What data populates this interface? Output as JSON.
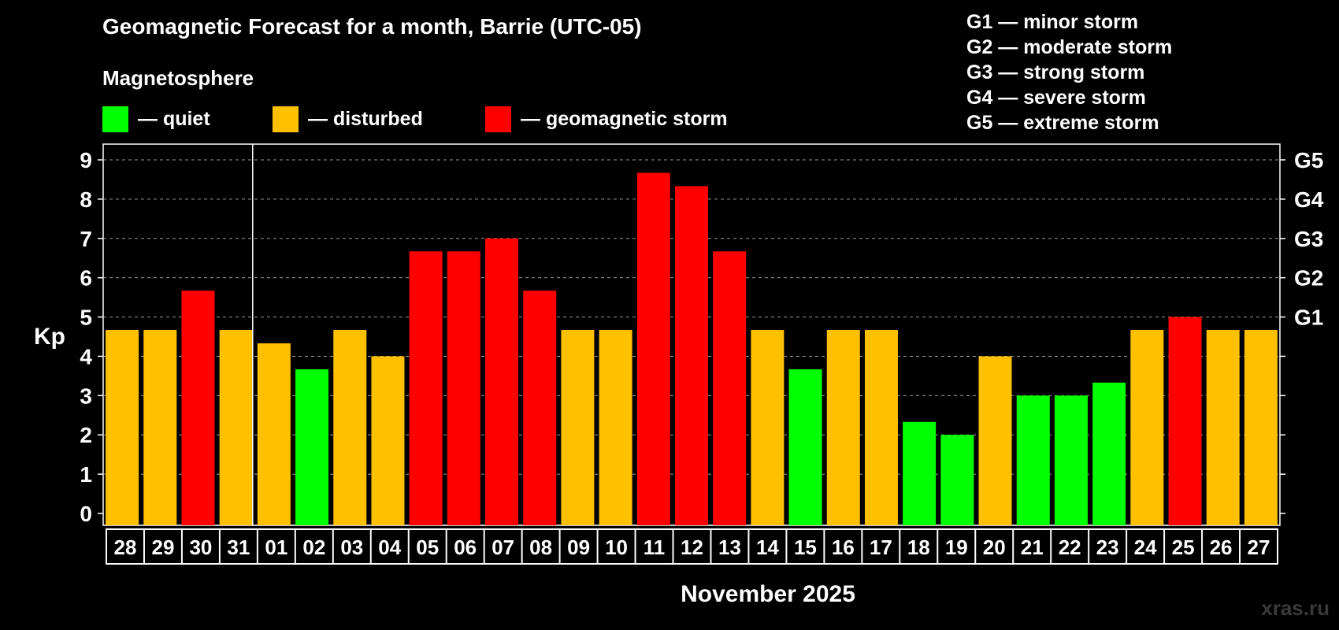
{
  "chart_data": {
    "type": "bar",
    "title": "Geomagnetic Forecast for a month, Barrie (UTC-05)",
    "subtitle": "Magnetosphere",
    "ylabel": "Kp",
    "xlabel": "November 2025",
    "ylim": [
      0,
      9
    ],
    "yticks": [
      "0",
      "1",
      "2",
      "3",
      "4",
      "5",
      "6",
      "7",
      "8",
      "9"
    ],
    "right_axis_labels": [
      {
        "kp": 5,
        "label": "G1"
      },
      {
        "kp": 6,
        "label": "G2"
      },
      {
        "kp": 7,
        "label": "G3"
      },
      {
        "kp": 8,
        "label": "G4"
      },
      {
        "kp": 9,
        "label": "G5"
      }
    ],
    "categories": [
      "28",
      "29",
      "30",
      "31",
      "01",
      "02",
      "03",
      "04",
      "05",
      "06",
      "07",
      "08",
      "09",
      "10",
      "11",
      "12",
      "13",
      "14",
      "15",
      "16",
      "17",
      "18",
      "19",
      "20",
      "21",
      "22",
      "23",
      "24",
      "25",
      "26",
      "27"
    ],
    "values": [
      4.67,
      4.67,
      5.67,
      4.67,
      4.33,
      3.67,
      4.67,
      4.0,
      6.67,
      6.67,
      7.0,
      5.67,
      4.67,
      4.67,
      8.67,
      8.33,
      6.67,
      4.67,
      3.67,
      4.67,
      4.67,
      2.33,
      2.0,
      4.0,
      3.0,
      3.0,
      3.33,
      4.67,
      5.0,
      4.67,
      4.67
    ],
    "levels": [
      "disturbed",
      "disturbed",
      "storm",
      "disturbed",
      "disturbed",
      "quiet",
      "disturbed",
      "disturbed",
      "storm",
      "storm",
      "storm",
      "storm",
      "disturbed",
      "disturbed",
      "storm",
      "storm",
      "storm",
      "disturbed",
      "quiet",
      "disturbed",
      "disturbed",
      "quiet",
      "quiet",
      "disturbed",
      "quiet",
      "quiet",
      "quiet",
      "disturbed",
      "storm",
      "disturbed",
      "disturbed"
    ],
    "month_boundary_after_index": 3,
    "gridlines": "dashed",
    "legend": [
      {
        "key": "quiet",
        "label": "— quiet",
        "color": "#00FF00"
      },
      {
        "key": "disturbed",
        "label": "— disturbed",
        "color": "#FFC000"
      },
      {
        "key": "storm",
        "label": "— geomagnetic storm",
        "color": "#FF0000"
      }
    ],
    "storm_scale": [
      "G1 — minor storm",
      "G2 — moderate storm",
      "G3 — strong storm",
      "G4 — severe storm",
      "G5 — extreme storm"
    ]
  },
  "watermark": "xras.ru"
}
